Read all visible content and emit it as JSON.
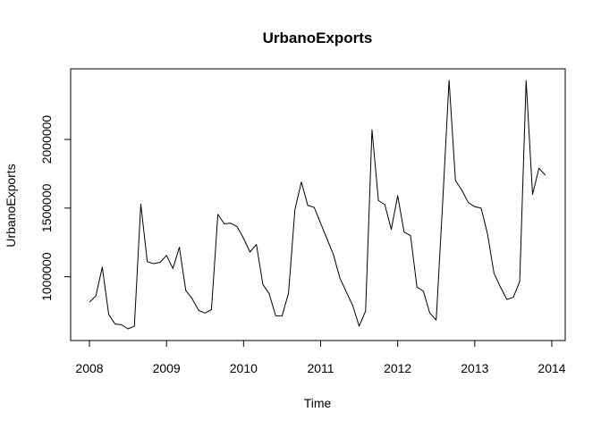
{
  "chart_data": {
    "type": "line",
    "title": "UrbanoExports",
    "xlabel": "Time",
    "ylabel": "UrbanoExports",
    "x_ticks": [
      2008,
      2009,
      2010,
      2011,
      2012,
      2013,
      2014
    ],
    "y_ticks": [
      1000000,
      1500000,
      2000000
    ],
    "xlim": [
      2008,
      2014
    ],
    "ylim": [
      620000,
      2430000
    ],
    "series": [
      {
        "x_start": 2008,
        "frequency": 12,
        "values": [
          815000,
          860000,
          1070000,
          725000,
          655000,
          650000,
          620000,
          640000,
          1530000,
          1110000,
          1095000,
          1105000,
          1155000,
          1060000,
          1215000,
          900000,
          840000,
          755000,
          735000,
          760000,
          1455000,
          1385000,
          1390000,
          1365000,
          1280000,
          1180000,
          1235000,
          945000,
          875000,
          715000,
          715000,
          880000,
          1490000,
          1690000,
          1520000,
          1505000,
          1390000,
          1275000,
          1160000,
          990000,
          890000,
          790000,
          640000,
          750000,
          2070000,
          1555000,
          1525000,
          1345000,
          1590000,
          1325000,
          1300000,
          925000,
          895000,
          735000,
          685000,
          1535000,
          2430000,
          1700000,
          1630000,
          1540000,
          1510000,
          1500000,
          1310000,
          1025000,
          925000,
          835000,
          850000,
          965000,
          2430000,
          1600000,
          1790000,
          1740000
        ]
      }
    ],
    "grid": false
  }
}
